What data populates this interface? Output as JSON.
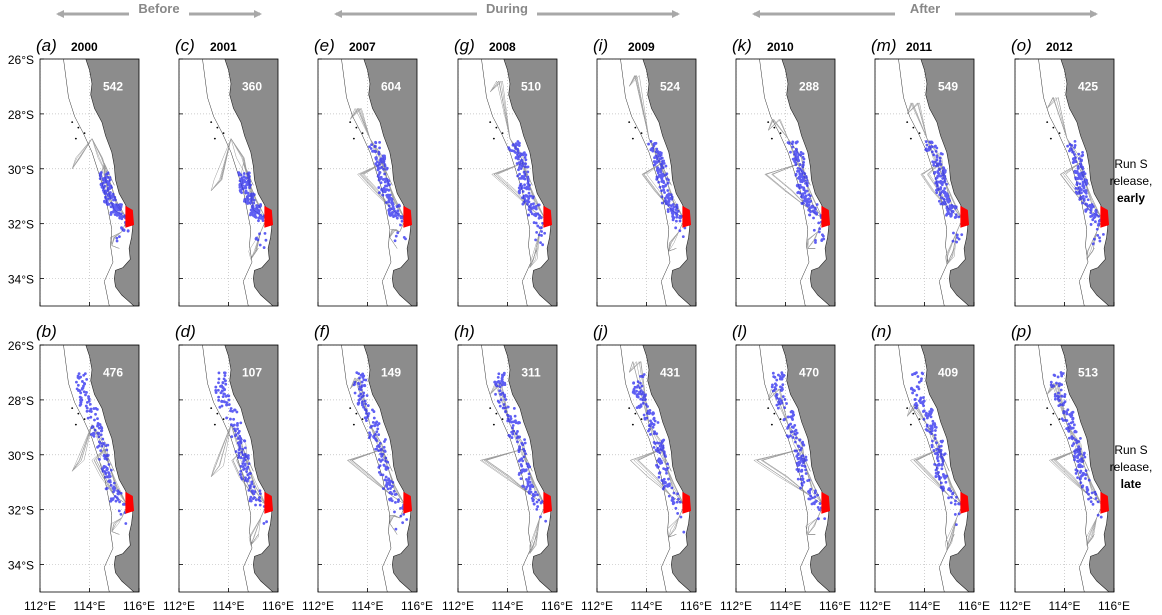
{
  "periods": [
    {
      "label": "Before",
      "from": 0,
      "to": 1
    },
    {
      "label": "During",
      "from": 2,
      "to": 4
    },
    {
      "label": "After",
      "from": 5,
      "to": 7
    }
  ],
  "colors": {
    "land": "#8c8c8c",
    "track": "#8a8a8a",
    "particle": "#2a2af0",
    "release": "#ff0000",
    "arrow": "#a8a8a8"
  },
  "chart_data": {
    "type": "map",
    "columns": [
      {
        "year": "2000",
        "period": "Before",
        "early": {
          "panel": "(a)",
          "count": 542
        },
        "late": {
          "panel": "(b)",
          "count": 476
        }
      },
      {
        "year": "2001",
        "period": "Before",
        "early": {
          "panel": "(c)",
          "count": 360
        },
        "late": {
          "panel": "(d)",
          "count": 107
        }
      },
      {
        "year": "2007",
        "period": "During",
        "early": {
          "panel": "(e)",
          "count": 604
        },
        "late": {
          "panel": "(f)",
          "count": 149
        }
      },
      {
        "year": "2008",
        "period": "During",
        "early": {
          "panel": "(g)",
          "count": 510
        },
        "late": {
          "panel": "(h)",
          "count": 311
        }
      },
      {
        "year": "2009",
        "period": "During",
        "early": {
          "panel": "(i)",
          "count": 524
        },
        "late": {
          "panel": "(j)",
          "count": 431
        }
      },
      {
        "year": "2010",
        "period": "After",
        "early": {
          "panel": "(k)",
          "count": 288
        },
        "late": {
          "panel": "(l)",
          "count": 470
        }
      },
      {
        "year": "2011",
        "period": "After",
        "early": {
          "panel": "(m)",
          "count": 549
        },
        "late": {
          "panel": "(n)",
          "count": 409
        }
      },
      {
        "year": "2012",
        "period": "After",
        "early": {
          "panel": "(o)",
          "count": 425
        },
        "late": {
          "panel": "(p)",
          "count": 513
        }
      }
    ],
    "rows": [
      {
        "key": "early",
        "label_lines": [
          "Run S",
          "release,",
          "early"
        ]
      },
      {
        "key": "late",
        "label_lines": [
          "Run S",
          "release,",
          "late"
        ]
      }
    ],
    "lat_ticks": [
      "26°S",
      "28°S",
      "30°S",
      "32°S",
      "34°S"
    ],
    "lat_values": [
      -26,
      -28,
      -30,
      -32,
      -34
    ],
    "lon_ticks": [
      "112°E",
      "114°E",
      "116°E"
    ],
    "lon_values": [
      112,
      114,
      116
    ],
    "lon_range": [
      112,
      116
    ],
    "lat_range": [
      -35,
      -26
    ],
    "grid": true
  }
}
